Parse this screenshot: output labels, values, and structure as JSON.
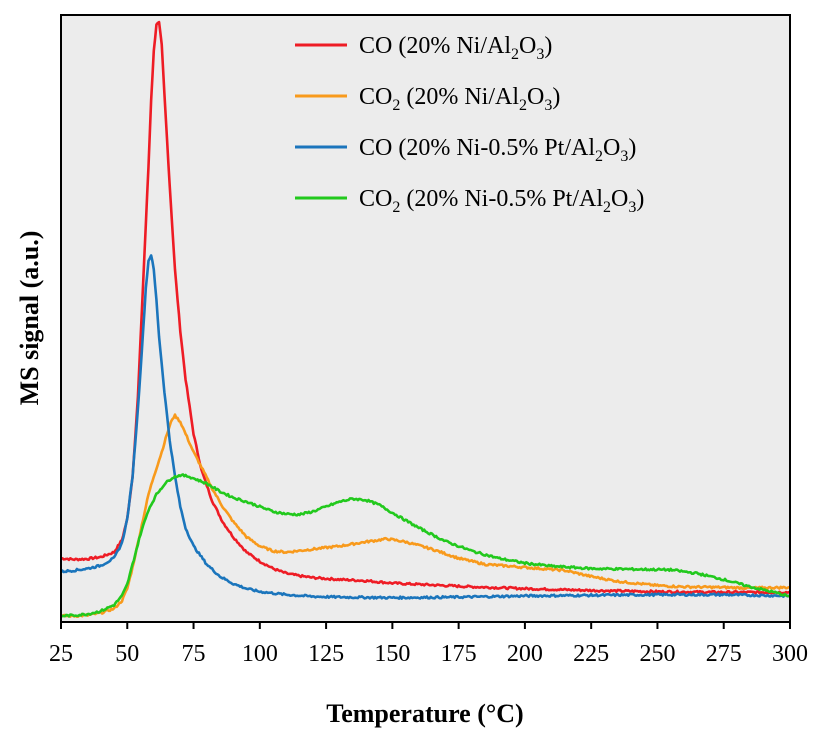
{
  "colors": {
    "plot_background": "#ececec",
    "frame": "#000000"
  },
  "chart_data": {
    "type": "line",
    "xlabel": "Temperature (°C)",
    "ylabel": "MS signal (a.u.)",
    "xlim": [
      25,
      300
    ],
    "ylim": [
      0,
      100
    ],
    "x_ticks": [
      "25",
      "50",
      "75",
      "100",
      "125",
      "150",
      "175",
      "200",
      "225",
      "250",
      "275",
      "300"
    ],
    "y_ticks_shown": false,
    "grid": false,
    "legend_position": "top-right",
    "series": [
      {
        "name": "CO (20% Ni/Al2O3)",
        "legend_parts": [
          [
            "CO (20% Ni/Al",
            false
          ],
          [
            "2",
            true
          ],
          [
            "O",
            false
          ],
          [
            "3",
            true
          ],
          [
            ")",
            false
          ]
        ],
        "color": "#ee1c25",
        "points": [
          [
            25,
            10.5
          ],
          [
            30,
            10.3
          ],
          [
            35,
            10.4
          ],
          [
            40,
            10.7
          ],
          [
            45,
            11.5
          ],
          [
            48,
            13.5
          ],
          [
            50,
            17
          ],
          [
            52,
            24
          ],
          [
            54,
            37
          ],
          [
            56,
            56
          ],
          [
            58,
            75
          ],
          [
            59,
            86
          ],
          [
            60,
            94
          ],
          [
            61,
            98.5
          ],
          [
            62,
            98.7
          ],
          [
            63,
            95
          ],
          [
            64,
            87
          ],
          [
            66,
            72
          ],
          [
            68,
            58
          ],
          [
            70,
            48
          ],
          [
            72,
            40
          ],
          [
            75,
            31
          ],
          [
            78,
            25
          ],
          [
            82,
            20
          ],
          [
            86,
            16.5
          ],
          [
            90,
            14
          ],
          [
            95,
            11.5
          ],
          [
            100,
            10
          ],
          [
            105,
            8.8
          ],
          [
            110,
            8
          ],
          [
            115,
            7.6
          ],
          [
            120,
            7.3
          ],
          [
            130,
            7.0
          ],
          [
            140,
            6.8
          ],
          [
            150,
            6.4
          ],
          [
            160,
            6.2
          ],
          [
            170,
            6.0
          ],
          [
            180,
            5.8
          ],
          [
            200,
            5.5
          ],
          [
            225,
            5.2
          ],
          [
            250,
            5.0
          ],
          [
            275,
            4.9
          ],
          [
            300,
            4.9
          ]
        ]
      },
      {
        "name": "CO2 (20% Ni/Al2O3)",
        "legend_parts": [
          [
            "CO",
            false
          ],
          [
            "2",
            true
          ],
          [
            " (20% Ni/Al",
            false
          ],
          [
            "2",
            true
          ],
          [
            "O",
            false
          ],
          [
            "3",
            true
          ],
          [
            ")",
            false
          ]
        ],
        "color": "#f89a1c",
        "points": [
          [
            25,
            1.0
          ],
          [
            30,
            1.0
          ],
          [
            35,
            1.1
          ],
          [
            40,
            1.5
          ],
          [
            45,
            2.2
          ],
          [
            48,
            3.5
          ],
          [
            50,
            5.5
          ],
          [
            52,
            9
          ],
          [
            55,
            15
          ],
          [
            58,
            21
          ],
          [
            60,
            24
          ],
          [
            63,
            28
          ],
          [
            65,
            31
          ],
          [
            67,
            33.5
          ],
          [
            68,
            34
          ],
          [
            70,
            33
          ],
          [
            72,
            31
          ],
          [
            75,
            28
          ],
          [
            78,
            25.5
          ],
          [
            82,
            22
          ],
          [
            86,
            19
          ],
          [
            90,
            16.5
          ],
          [
            95,
            14
          ],
          [
            100,
            12.5
          ],
          [
            105,
            11.7
          ],
          [
            110,
            11.5
          ],
          [
            120,
            12
          ],
          [
            130,
            12.5
          ],
          [
            140,
            13.2
          ],
          [
            148,
            13.7
          ],
          [
            155,
            13.2
          ],
          [
            165,
            12
          ],
          [
            175,
            10.5
          ],
          [
            185,
            9.5
          ],
          [
            200,
            9.0
          ],
          [
            215,
            8.5
          ],
          [
            225,
            7.5
          ],
          [
            235,
            6.7
          ],
          [
            250,
            6.0
          ],
          [
            260,
            5.8
          ],
          [
            275,
            5.7
          ],
          [
            285,
            5.6
          ],
          [
            300,
            5.7
          ]
        ]
      },
      {
        "name": "CO (20% Ni-0.5% Pt/Al2O3)",
        "legend_parts": [
          [
            "CO (20% Ni-0.5% Pt/Al",
            false
          ],
          [
            "2",
            true
          ],
          [
            "O",
            false
          ],
          [
            "3",
            true
          ],
          [
            ")",
            false
          ]
        ],
        "color": "#1b75bc",
        "points": [
          [
            25,
            8.3
          ],
          [
            30,
            8.5
          ],
          [
            35,
            8.8
          ],
          [
            40,
            9.3
          ],
          [
            45,
            10.5
          ],
          [
            48,
            13
          ],
          [
            50,
            17
          ],
          [
            52,
            24
          ],
          [
            54,
            35
          ],
          [
            56,
            48
          ],
          [
            57,
            55
          ],
          [
            58,
            59.5
          ],
          [
            59,
            60.5
          ],
          [
            60,
            58
          ],
          [
            61,
            53
          ],
          [
            62,
            47
          ],
          [
            64,
            38
          ],
          [
            66,
            30
          ],
          [
            68,
            24
          ],
          [
            70,
            19
          ],
          [
            72,
            15.5
          ],
          [
            75,
            12.5
          ],
          [
            80,
            9.5
          ],
          [
            85,
            7.5
          ],
          [
            90,
            6.3
          ],
          [
            95,
            5.5
          ],
          [
            100,
            5.0
          ],
          [
            110,
            4.5
          ],
          [
            120,
            4.2
          ],
          [
            130,
            4.1
          ],
          [
            150,
            4.0
          ],
          [
            175,
            4.1
          ],
          [
            200,
            4.3
          ],
          [
            225,
            4.4
          ],
          [
            250,
            4.5
          ],
          [
            275,
            4.5
          ],
          [
            300,
            4.3
          ]
        ]
      },
      {
        "name": "CO2 (20% Ni-0.5% Pt/Al2O3)",
        "legend_parts": [
          [
            "CO",
            false
          ],
          [
            "2",
            true
          ],
          [
            " (20% Ni-0.5% Pt/Al",
            false
          ],
          [
            "2",
            true
          ],
          [
            "O",
            false
          ],
          [
            "3",
            true
          ],
          [
            ")",
            false
          ]
        ],
        "color": "#22c91d",
        "points": [
          [
            25,
            1.0
          ],
          [
            30,
            1.1
          ],
          [
            35,
            1.3
          ],
          [
            40,
            1.8
          ],
          [
            45,
            2.8
          ],
          [
            48,
            4.3
          ],
          [
            50,
            6.2
          ],
          [
            52,
            9.5
          ],
          [
            55,
            14.5
          ],
          [
            58,
            18.5
          ],
          [
            61,
            21
          ],
          [
            64,
            22.7
          ],
          [
            67,
            23.8
          ],
          [
            70,
            24.2
          ],
          [
            73,
            24
          ],
          [
            76,
            23.5
          ],
          [
            80,
            22.8
          ],
          [
            85,
            21.5
          ],
          [
            90,
            20.5
          ],
          [
            95,
            19.8
          ],
          [
            100,
            19
          ],
          [
            105,
            18.2
          ],
          [
            110,
            17.8
          ],
          [
            115,
            17.7
          ],
          [
            120,
            18.2
          ],
          [
            125,
            19
          ],
          [
            130,
            19.8
          ],
          [
            135,
            20.3
          ],
          [
            140,
            20.1
          ],
          [
            145,
            19.3
          ],
          [
            150,
            18
          ],
          [
            160,
            15.5
          ],
          [
            170,
            13.3
          ],
          [
            180,
            11.7
          ],
          [
            190,
            10.5
          ],
          [
            200,
            9.7
          ],
          [
            210,
            9.2
          ],
          [
            225,
            8.8
          ],
          [
            240,
            8.7
          ],
          [
            255,
            8.6
          ],
          [
            265,
            8.0
          ],
          [
            275,
            7.0
          ],
          [
            285,
            5.8
          ],
          [
            295,
            4.8
          ],
          [
            300,
            4.2
          ]
        ]
      }
    ]
  }
}
